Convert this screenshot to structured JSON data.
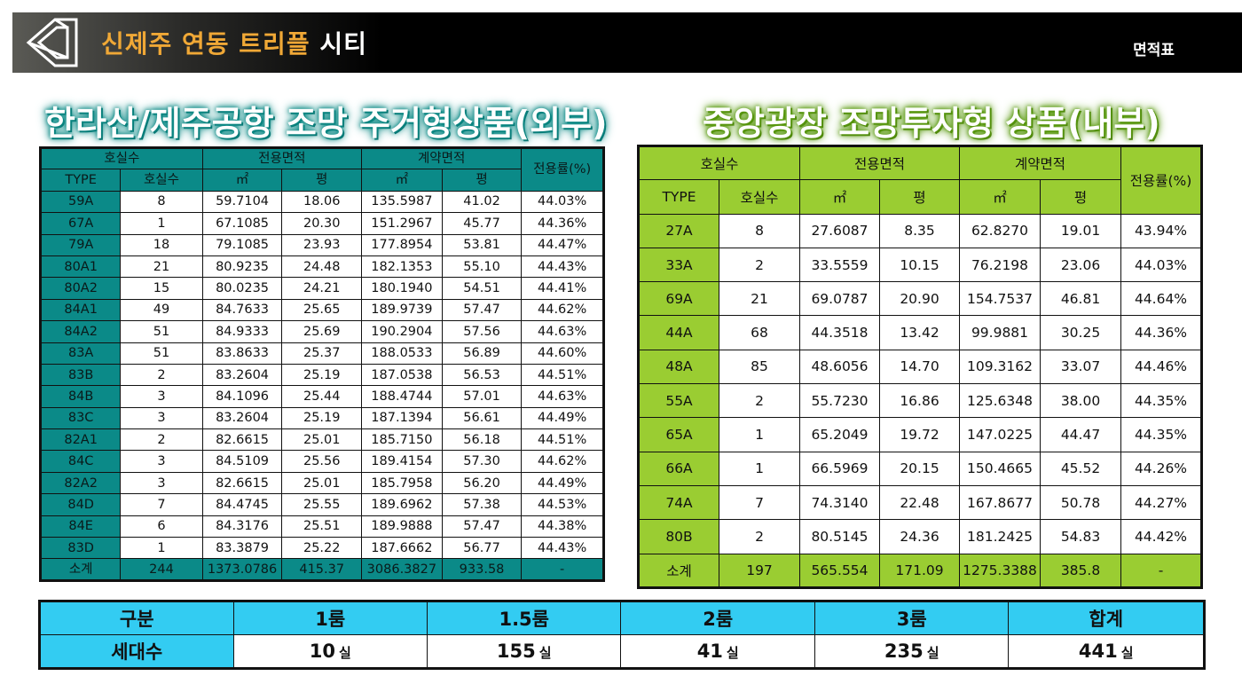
{
  "header": {
    "title_main": "신제주 연동 트리플",
    "title_tail": "시티",
    "right_label": "면적표"
  },
  "left": {
    "heading": "한라산/제주공항 조망 주거형상품(외부)",
    "head1": {
      "units": "호실수",
      "exclusive": "전용면적",
      "contract": "계약면적",
      "ratio": "전용률(%)"
    },
    "head2": {
      "type": "TYPE",
      "count": "호실수",
      "m2": "㎡",
      "py": "평",
      "m2b": "㎡",
      "pyb": "평"
    },
    "rows": [
      [
        "59A",
        "8",
        "59.7104",
        "18.06",
        "135.5987",
        "41.02",
        "44.03%"
      ],
      [
        "67A",
        "1",
        "67.1085",
        "20.30",
        "151.2967",
        "45.77",
        "44.36%"
      ],
      [
        "79A",
        "18",
        "79.1085",
        "23.93",
        "177.8954",
        "53.81",
        "44.47%"
      ],
      [
        "80A1",
        "21",
        "80.9235",
        "24.48",
        "182.1353",
        "55.10",
        "44.43%"
      ],
      [
        "80A2",
        "15",
        "80.0235",
        "24.21",
        "180.1940",
        "54.51",
        "44.41%"
      ],
      [
        "84A1",
        "49",
        "84.7633",
        "25.65",
        "189.9739",
        "57.47",
        "44.62%"
      ],
      [
        "84A2",
        "51",
        "84.9333",
        "25.69",
        "190.2904",
        "57.56",
        "44.63%"
      ],
      [
        "83A",
        "51",
        "83.8633",
        "25.37",
        "188.0533",
        "56.89",
        "44.60%"
      ],
      [
        "83B",
        "2",
        "83.2604",
        "25.19",
        "187.0538",
        "56.53",
        "44.51%"
      ],
      [
        "84B",
        "3",
        "84.1096",
        "25.44",
        "188.4744",
        "57.01",
        "44.63%"
      ],
      [
        "83C",
        "3",
        "83.2604",
        "25.19",
        "187.1394",
        "56.61",
        "44.49%"
      ],
      [
        "82A1",
        "2",
        "82.6615",
        "25.01",
        "185.7150",
        "56.18",
        "44.51%"
      ],
      [
        "84C",
        "3",
        "84.5109",
        "25.56",
        "189.4154",
        "57.30",
        "44.62%"
      ],
      [
        "82A2",
        "3",
        "82.6615",
        "25.01",
        "185.7958",
        "56.20",
        "44.49%"
      ],
      [
        "84D",
        "7",
        "84.4745",
        "25.55",
        "189.6962",
        "57.38",
        "44.53%"
      ],
      [
        "84E",
        "6",
        "84.3176",
        "25.51",
        "189.9888",
        "57.47",
        "44.38%"
      ],
      [
        "83D",
        "1",
        "83.3879",
        "25.22",
        "187.6662",
        "56.77",
        "44.43%"
      ]
    ],
    "total": [
      "소계",
      "244",
      "1373.0786",
      "415.37",
      "3086.3827",
      "933.58",
      "-"
    ]
  },
  "right": {
    "heading": "중앙광장 조망투자형 상품(내부)",
    "head1": {
      "units": "호실수",
      "exclusive": "전용면적",
      "contract": "계약면적",
      "ratio": "전용률(%)"
    },
    "head2": {
      "type": "TYPE",
      "count": "호실수",
      "m2": "㎡",
      "py": "평",
      "m2b": "㎡",
      "pyb": "평"
    },
    "rows": [
      [
        "27A",
        "8",
        "27.6087",
        "8.35",
        "62.8270",
        "19.01",
        "43.94%"
      ],
      [
        "33A",
        "2",
        "33.5559",
        "10.15",
        "76.2198",
        "23.06",
        "44.03%"
      ],
      [
        "69A",
        "21",
        "69.0787",
        "20.90",
        "154.7537",
        "46.81",
        "44.64%"
      ],
      [
        "44A",
        "68",
        "44.3518",
        "13.42",
        "99.9881",
        "30.25",
        "44.36%"
      ],
      [
        "48A",
        "85",
        "48.6056",
        "14.70",
        "109.3162",
        "33.07",
        "44.46%"
      ],
      [
        "55A",
        "2",
        "55.7230",
        "16.86",
        "125.6348",
        "38.00",
        "44.35%"
      ],
      [
        "65A",
        "1",
        "65.2049",
        "19.72",
        "147.0225",
        "44.47",
        "44.35%"
      ],
      [
        "66A",
        "1",
        "66.5969",
        "20.15",
        "150.4665",
        "45.52",
        "44.26%"
      ],
      [
        "74A",
        "7",
        "74.3140",
        "22.48",
        "167.8677",
        "50.78",
        "44.27%"
      ],
      [
        "80B",
        "2",
        "80.5145",
        "24.36",
        "181.2425",
        "54.83",
        "44.42%"
      ]
    ],
    "total": [
      "소계",
      "197",
      "565.554",
      "171.09",
      "1275.3388",
      "385.8",
      "-"
    ]
  },
  "summary": {
    "headers": [
      "구분",
      "1룸",
      "1.5룸",
      "2룸",
      "3룸",
      "합계"
    ],
    "row_label": "세대수",
    "values": [
      "10",
      "155",
      "41",
      "235",
      "441"
    ],
    "unit": "실"
  },
  "colors": {
    "teal": "#0b8a88",
    "lime": "#9acd32",
    "blue": "#33ccf2",
    "gold": "#f0a836"
  }
}
